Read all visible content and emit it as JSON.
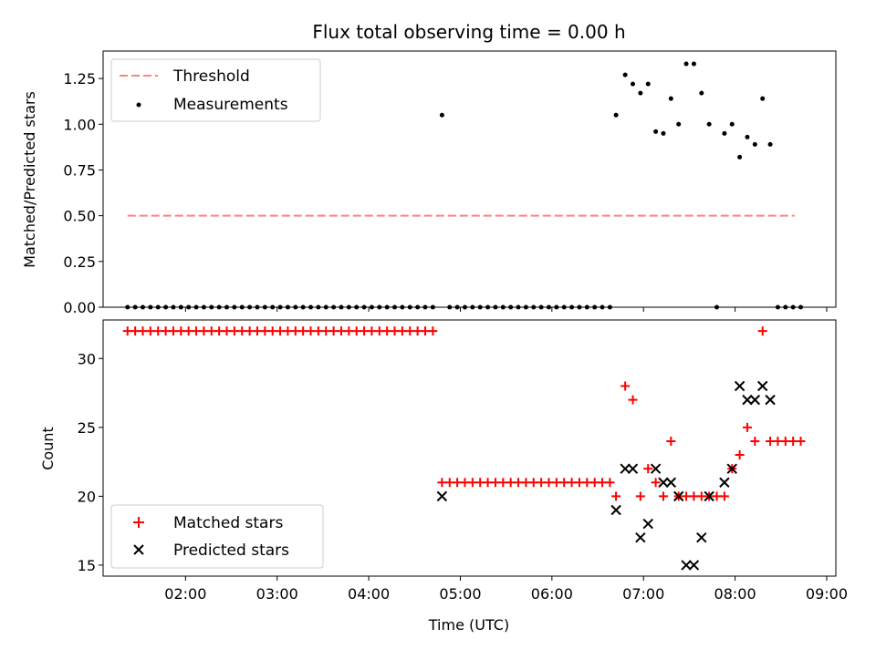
{
  "chart_data": [
    {
      "type": "scatter",
      "title": "Flux total observing time = 0.00 h",
      "ylabel": "Matched/Predicted stars",
      "xlim": [
        "01:06",
        "09:06"
      ],
      "ylim": [
        0,
        1.4
      ],
      "yticks": [
        0.0,
        0.25,
        0.5,
        0.75,
        1.0,
        1.25
      ],
      "ytick_labels": [
        "0.00",
        "0.25",
        "0.50",
        "0.75",
        "1.00",
        "1.25"
      ],
      "legend_position": "upper-left",
      "series": [
        {
          "name": "Threshold",
          "kind": "dashed-line",
          "color": "#ff8080",
          "x": [
            "01:22",
            "08:39"
          ],
          "y": [
            0.5,
            0.5
          ]
        },
        {
          "name": "Measurements",
          "kind": "dots",
          "color": "#000000",
          "points": [
            [
              "01:22",
              0
            ],
            [
              "01:27",
              0
            ],
            [
              "01:32",
              0
            ],
            [
              "01:37",
              0
            ],
            [
              "01:42",
              0
            ],
            [
              "01:47",
              0
            ],
            [
              "01:52",
              0
            ],
            [
              "01:57",
              0
            ],
            [
              "02:02",
              0
            ],
            [
              "02:07",
              0
            ],
            [
              "02:12",
              0
            ],
            [
              "02:17",
              0
            ],
            [
              "02:22",
              0
            ],
            [
              "02:27",
              0
            ],
            [
              "02:32",
              0
            ],
            [
              "02:37",
              0
            ],
            [
              "02:42",
              0
            ],
            [
              "02:47",
              0
            ],
            [
              "02:52",
              0
            ],
            [
              "02:57",
              0
            ],
            [
              "03:02",
              0
            ],
            [
              "03:07",
              0
            ],
            [
              "03:12",
              0
            ],
            [
              "03:17",
              0
            ],
            [
              "03:22",
              0
            ],
            [
              "03:27",
              0
            ],
            [
              "03:32",
              0
            ],
            [
              "03:37",
              0
            ],
            [
              "03:42",
              0
            ],
            [
              "03:47",
              0
            ],
            [
              "03:52",
              0
            ],
            [
              "03:57",
              0
            ],
            [
              "04:02",
              0
            ],
            [
              "04:07",
              0
            ],
            [
              "04:12",
              0
            ],
            [
              "04:17",
              0
            ],
            [
              "04:22",
              0
            ],
            [
              "04:27",
              0
            ],
            [
              "04:32",
              0
            ],
            [
              "04:37",
              0
            ],
            [
              "04:42",
              0
            ],
            [
              "04:48",
              1.05
            ],
            [
              "04:53",
              0
            ],
            [
              "04:58",
              0
            ],
            [
              "05:03",
              0
            ],
            [
              "05:08",
              0
            ],
            [
              "05:13",
              0
            ],
            [
              "05:18",
              0
            ],
            [
              "05:23",
              0
            ],
            [
              "05:28",
              0
            ],
            [
              "05:33",
              0
            ],
            [
              "05:38",
              0
            ],
            [
              "05:43",
              0
            ],
            [
              "05:48",
              0
            ],
            [
              "05:53",
              0
            ],
            [
              "05:58",
              0
            ],
            [
              "06:03",
              0
            ],
            [
              "06:08",
              0
            ],
            [
              "06:13",
              0
            ],
            [
              "06:18",
              0
            ],
            [
              "06:23",
              0
            ],
            [
              "06:28",
              0
            ],
            [
              "06:33",
              0
            ],
            [
              "06:38",
              0
            ],
            [
              "06:42",
              1.05
            ],
            [
              "06:48",
              1.27
            ],
            [
              "06:53",
              1.22
            ],
            [
              "06:58",
              1.17
            ],
            [
              "07:03",
              1.22
            ],
            [
              "07:08",
              0.96
            ],
            [
              "07:13",
              0.95
            ],
            [
              "07:18",
              1.14
            ],
            [
              "07:23",
              1.0
            ],
            [
              "07:28",
              1.33
            ],
            [
              "07:33",
              1.33
            ],
            [
              "07:38",
              1.17
            ],
            [
              "07:43",
              1.0
            ],
            [
              "07:48",
              0
            ],
            [
              "07:53",
              0.95
            ],
            [
              "07:58",
              1.0
            ],
            [
              "08:03",
              0.82
            ],
            [
              "08:08",
              0.93
            ],
            [
              "08:13",
              0.89
            ],
            [
              "08:18",
              1.14
            ],
            [
              "08:23",
              0.89
            ],
            [
              "08:28",
              0
            ],
            [
              "08:33",
              0
            ],
            [
              "08:38",
              0
            ],
            [
              "08:43",
              0
            ]
          ]
        }
      ]
    },
    {
      "type": "scatter",
      "xlabel": "Time (UTC)",
      "ylabel": "Count",
      "xlim": [
        "01:06",
        "09:06"
      ],
      "ylim": [
        14.2,
        32.8
      ],
      "xticks": [
        "02:00",
        "03:00",
        "04:00",
        "05:00",
        "06:00",
        "07:00",
        "08:00",
        "09:00"
      ],
      "yticks": [
        15,
        20,
        25,
        30
      ],
      "ytick_labels": [
        "15",
        "20",
        "25",
        "30"
      ],
      "legend_position": "lower-left",
      "series": [
        {
          "name": "Matched stars",
          "marker": "plus",
          "color": "#ff0000",
          "points": [
            [
              "01:22",
              32
            ],
            [
              "01:27",
              32
            ],
            [
              "01:32",
              32
            ],
            [
              "01:37",
              32
            ],
            [
              "01:42",
              32
            ],
            [
              "01:47",
              32
            ],
            [
              "01:52",
              32
            ],
            [
              "01:57",
              32
            ],
            [
              "02:02",
              32
            ],
            [
              "02:07",
              32
            ],
            [
              "02:12",
              32
            ],
            [
              "02:17",
              32
            ],
            [
              "02:22",
              32
            ],
            [
              "02:27",
              32
            ],
            [
              "02:32",
              32
            ],
            [
              "02:37",
              32
            ],
            [
              "02:42",
              32
            ],
            [
              "02:47",
              32
            ],
            [
              "02:52",
              32
            ],
            [
              "02:57",
              32
            ],
            [
              "03:02",
              32
            ],
            [
              "03:07",
              32
            ],
            [
              "03:12",
              32
            ],
            [
              "03:17",
              32
            ],
            [
              "03:22",
              32
            ],
            [
              "03:27",
              32
            ],
            [
              "03:32",
              32
            ],
            [
              "03:37",
              32
            ],
            [
              "03:42",
              32
            ],
            [
              "03:47",
              32
            ],
            [
              "03:52",
              32
            ],
            [
              "03:57",
              32
            ],
            [
              "04:02",
              32
            ],
            [
              "04:07",
              32
            ],
            [
              "04:12",
              32
            ],
            [
              "04:17",
              32
            ],
            [
              "04:22",
              32
            ],
            [
              "04:27",
              32
            ],
            [
              "04:32",
              32
            ],
            [
              "04:37",
              32
            ],
            [
              "04:42",
              32
            ],
            [
              "04:48",
              21
            ],
            [
              "04:53",
              21
            ],
            [
              "04:58",
              21
            ],
            [
              "05:03",
              21
            ],
            [
              "05:08",
              21
            ],
            [
              "05:13",
              21
            ],
            [
              "05:18",
              21
            ],
            [
              "05:23",
              21
            ],
            [
              "05:28",
              21
            ],
            [
              "05:33",
              21
            ],
            [
              "05:38",
              21
            ],
            [
              "05:43",
              21
            ],
            [
              "05:48",
              21
            ],
            [
              "05:53",
              21
            ],
            [
              "05:58",
              21
            ],
            [
              "06:03",
              21
            ],
            [
              "06:08",
              21
            ],
            [
              "06:13",
              21
            ],
            [
              "06:18",
              21
            ],
            [
              "06:23",
              21
            ],
            [
              "06:28",
              21
            ],
            [
              "06:33",
              21
            ],
            [
              "06:38",
              21
            ],
            [
              "06:42",
              20
            ],
            [
              "06:48",
              28
            ],
            [
              "06:53",
              27
            ],
            [
              "06:58",
              20
            ],
            [
              "07:03",
              22
            ],
            [
              "07:08",
              21
            ],
            [
              "07:13",
              20
            ],
            [
              "07:18",
              24
            ],
            [
              "07:23",
              20
            ],
            [
              "07:28",
              20
            ],
            [
              "07:33",
              20
            ],
            [
              "07:38",
              20
            ],
            [
              "07:43",
              20
            ],
            [
              "07:48",
              20
            ],
            [
              "07:53",
              20
            ],
            [
              "07:58",
              22
            ],
            [
              "08:03",
              23
            ],
            [
              "08:08",
              25
            ],
            [
              "08:13",
              24
            ],
            [
              "08:18",
              32
            ],
            [
              "08:23",
              24
            ],
            [
              "08:28",
              24
            ],
            [
              "08:33",
              24
            ],
            [
              "08:38",
              24
            ],
            [
              "08:43",
              24
            ]
          ]
        },
        {
          "name": "Predicted stars",
          "marker": "x",
          "color": "#000000",
          "points": [
            [
              "04:48",
              20
            ],
            [
              "06:42",
              19
            ],
            [
              "06:48",
              22
            ],
            [
              "06:53",
              22
            ],
            [
              "06:58",
              17
            ],
            [
              "07:03",
              18
            ],
            [
              "07:08",
              22
            ],
            [
              "07:13",
              21
            ],
            [
              "07:18",
              21
            ],
            [
              "07:23",
              20
            ],
            [
              "07:28",
              15
            ],
            [
              "07:33",
              15
            ],
            [
              "07:38",
              17
            ],
            [
              "07:43",
              20
            ],
            [
              "07:53",
              21
            ],
            [
              "07:58",
              22
            ],
            [
              "08:03",
              28
            ],
            [
              "08:08",
              27
            ],
            [
              "08:13",
              27
            ],
            [
              "08:18",
              28
            ],
            [
              "08:23",
              27
            ]
          ]
        }
      ]
    }
  ]
}
